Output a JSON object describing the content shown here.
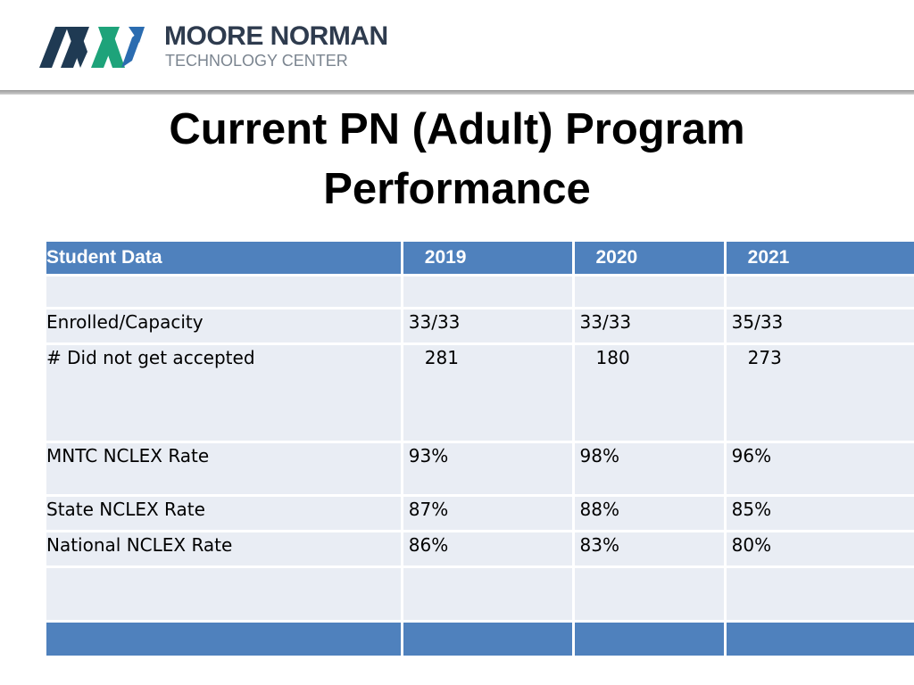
{
  "header": {
    "logo_name": "MOORE NORMAN",
    "logo_sub": "TECHNOLOGY CENTER",
    "logo_colors": {
      "dark": "#1f3a53",
      "green": "#1ea37a",
      "blue": "#2b6cb0"
    }
  },
  "title_line1": "Current PN (Adult) Program",
  "title_line2": "Performance",
  "table": {
    "headers": [
      "Student Data",
      "2019",
      "2020",
      "2021"
    ],
    "rows": [
      {
        "label": "",
        "values": [
          "",
          "",
          ""
        ]
      },
      {
        "label": "Enrolled/Capacity",
        "values": [
          "33/33",
          "33/33",
          "35/33"
        ]
      },
      {
        "label": "# Did not get accepted",
        "values": [
          "281",
          "180",
          "273"
        ]
      },
      {
        "label": "MNTC NCLEX Rate",
        "values": [
          "93%",
          "98%",
          "96%"
        ]
      },
      {
        "label": "State NCLEX Rate",
        "values": [
          "87%",
          "88%",
          "85%"
        ]
      },
      {
        "label": "National NCLEX Rate",
        "values": [
          "86%",
          "83%",
          "80%"
        ]
      },
      {
        "label": "",
        "values": [
          "",
          "",
          ""
        ]
      }
    ],
    "header_color": "#4f81bd",
    "cell_color": "#e9edf4"
  }
}
